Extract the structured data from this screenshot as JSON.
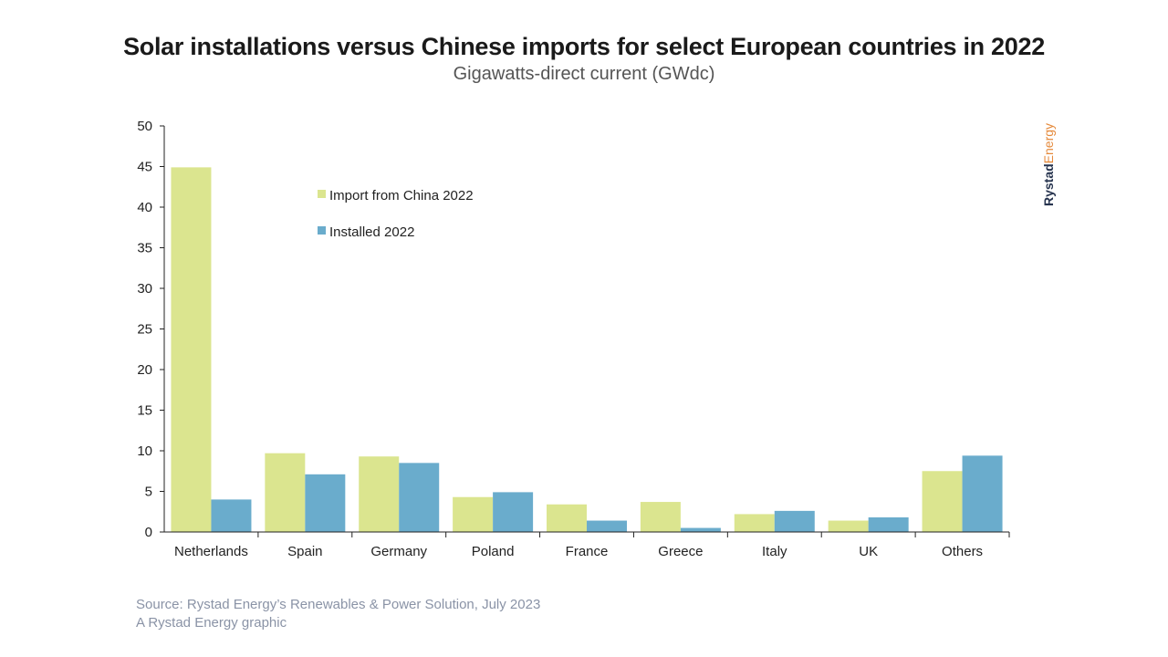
{
  "title": "Solar installations versus Chinese imports for select European countries in 2022",
  "subtitle": "Gigawatts-direct current (GWdc)",
  "source": {
    "line1": "Source: Rystad Energy’s Renewables & Power Solution, July 2023",
    "line2": "A Rystad Energy graphic"
  },
  "brand": {
    "part1": "Rystad",
    "part2": "Energy"
  },
  "colors": {
    "import": "#dbe58f",
    "installed": "#6aaccc",
    "axis": "#222222"
  },
  "chart_data": {
    "type": "bar",
    "categories": [
      "Netherlands",
      "Spain",
      "Germany",
      "Poland",
      "France",
      "Greece",
      "Italy",
      "UK",
      "Others"
    ],
    "series": [
      {
        "name": "Import from China 2022",
        "values": [
          44.9,
          9.7,
          9.3,
          4.3,
          3.4,
          3.7,
          2.2,
          1.4,
          7.5
        ]
      },
      {
        "name": "Installed 2022",
        "values": [
          4.0,
          7.1,
          8.5,
          4.9,
          1.4,
          0.5,
          2.6,
          1.8,
          9.4
        ]
      }
    ],
    "ylim": [
      0,
      50
    ],
    "yticks": [
      0,
      5,
      10,
      15,
      20,
      25,
      30,
      35,
      40,
      45,
      50
    ],
    "legend": "inside-top-left",
    "grid": false
  }
}
